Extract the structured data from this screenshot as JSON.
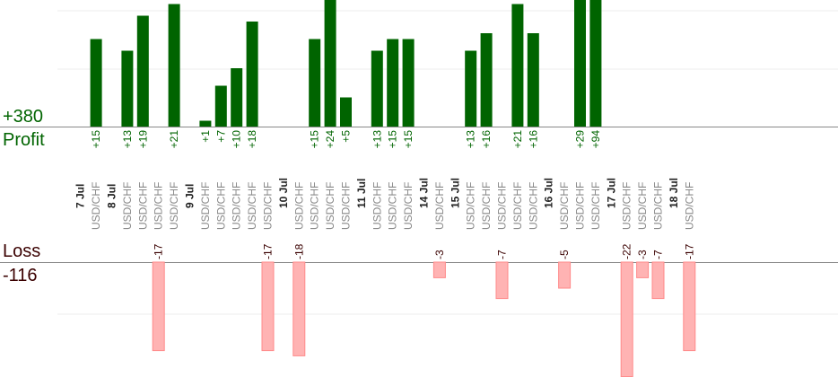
{
  "summary": {
    "profit_total": "+380",
    "profit_label": "Profit",
    "loss_label": "Loss",
    "loss_total": "-116"
  },
  "colors": {
    "profit_bar": "#006400",
    "profit_text": "#006400",
    "loss_bar": "#ffb3b3",
    "loss_bar_edge": "#ff8a8a",
    "loss_text": "#3a0000",
    "axis": "#888888",
    "grid": "#eeeeee",
    "date_text": "#222222",
    "pair_text": "#888888"
  },
  "chart_data": {
    "type": "bar",
    "title": "",
    "xlabel": "",
    "ylabel": "",
    "grid": true,
    "days": [
      {
        "date": "7 Jul",
        "trades": [
          {
            "pair": "USD/CHF",
            "value": 15
          }
        ]
      },
      {
        "date": "8 Jul",
        "trades": [
          {
            "pair": "USD/CHF",
            "value": 13
          },
          {
            "pair": "USD/CHF",
            "value": 19
          },
          {
            "pair": "USD/CHF",
            "value": -17
          },
          {
            "pair": "USD/CHF",
            "value": 21
          }
        ]
      },
      {
        "date": "9 Jul",
        "trades": [
          {
            "pair": "USD/CHF",
            "value": 1
          },
          {
            "pair": "USD/CHF",
            "value": 7
          },
          {
            "pair": "USD/CHF",
            "value": 10
          },
          {
            "pair": "USD/CHF",
            "value": 18
          },
          {
            "pair": "USD/CHF",
            "value": -17
          }
        ]
      },
      {
        "date": "10 Jul",
        "trades": [
          {
            "pair": "USD/CHF",
            "value": -18
          },
          {
            "pair": "USD/CHF",
            "value": 15
          },
          {
            "pair": "USD/CHF",
            "value": 24
          },
          {
            "pair": "USD/CHF",
            "value": 5
          }
        ]
      },
      {
        "date": "11 Jul",
        "trades": [
          {
            "pair": "USD/CHF",
            "value": 13
          },
          {
            "pair": "USD/CHF",
            "value": 15
          },
          {
            "pair": "USD/CHF",
            "value": 15
          }
        ]
      },
      {
        "date": "14 Jul",
        "trades": [
          {
            "pair": "USD/CHF",
            "value": -3
          }
        ]
      },
      {
        "date": "15 Jul",
        "trades": [
          {
            "pair": "USD/CHF",
            "value": 13
          },
          {
            "pair": "USD/CHF",
            "value": 16
          },
          {
            "pair": "USD/CHF",
            "value": -7
          },
          {
            "pair": "USD/CHF",
            "value": 21
          },
          {
            "pair": "USD/CHF",
            "value": 16
          }
        ]
      },
      {
        "date": "16 Jul",
        "trades": [
          {
            "pair": "USD/CHF",
            "value": -5
          },
          {
            "pair": "USD/CHF",
            "value": 29
          },
          {
            "pair": "USD/CHF",
            "value": 94
          }
        ]
      },
      {
        "date": "17 Jul",
        "trades": [
          {
            "pair": "USD/CHF",
            "value": -22
          },
          {
            "pair": "USD/CHF",
            "value": -3
          },
          {
            "pair": "USD/CHF",
            "value": -7
          }
        ]
      },
      {
        "date": "18 Jul",
        "trades": [
          {
            "pair": "USD/CHF",
            "value": -17
          }
        ]
      }
    ]
  }
}
